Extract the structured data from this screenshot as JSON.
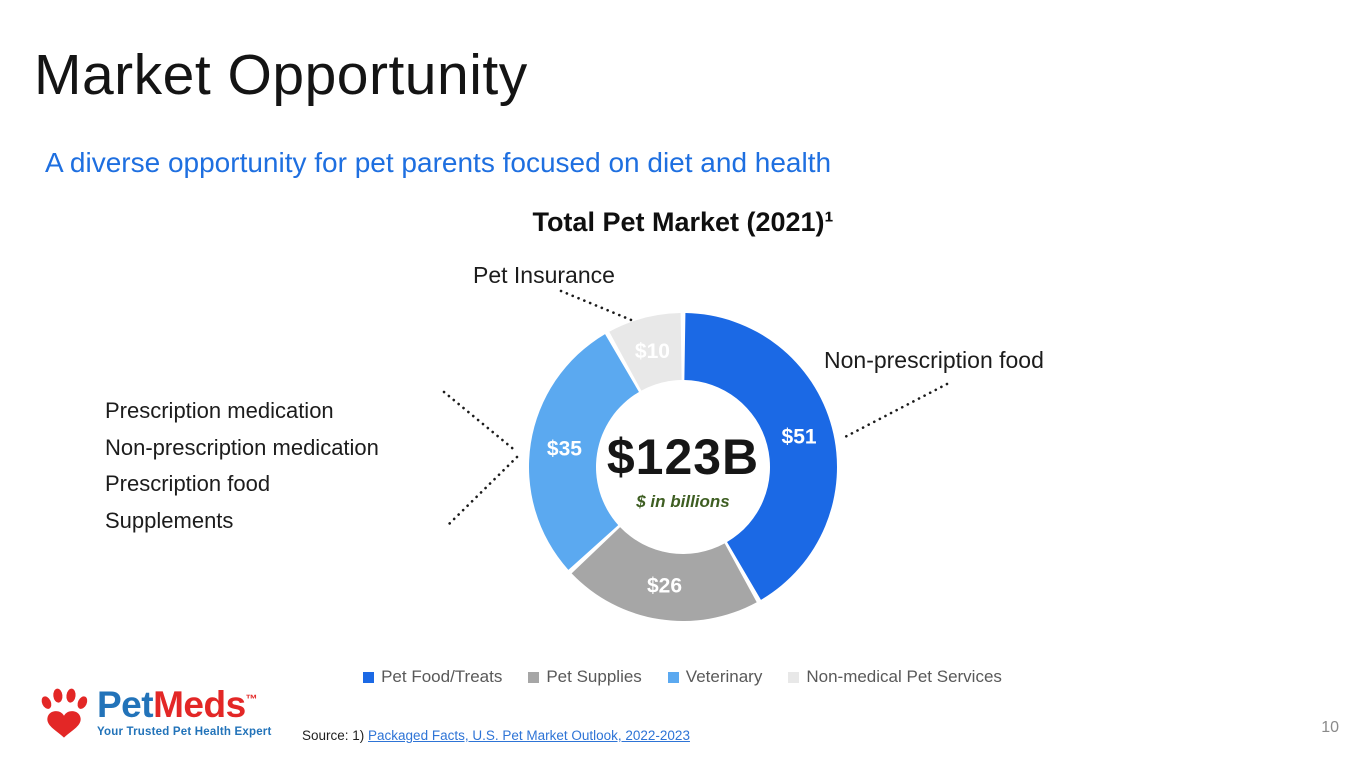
{
  "slide": {
    "title": "Market Opportunity",
    "subtitle": "A diverse opportunity for pet parents focused on diet and health",
    "page_number": "10"
  },
  "chart_data": {
    "type": "pie",
    "donut": true,
    "title": "Total Pet Market (2021)¹",
    "categories": [
      "Pet Food/Treats",
      "Pet Supplies",
      "Veterinary",
      "Non-medical Pet Services"
    ],
    "values": [
      51,
      26,
      35,
      10
    ],
    "value_labels": [
      "$51",
      "$26",
      "$35",
      "$10"
    ],
    "colors": [
      "#1B69E5",
      "#A6A6A6",
      "#5BA9F0",
      "#E8E8E8"
    ],
    "total": 123,
    "center_label": "$123B",
    "center_sublabel": "$ in billions",
    "start_angle": "top",
    "direction": "clockwise",
    "legend_position": "bottom"
  },
  "annotations": {
    "pet_insurance": "Pet Insurance",
    "non_prescription_food": "Non-prescription food",
    "left_list": [
      "Prescription medication",
      "Non-prescription medication",
      "Prescription food",
      "Supplements"
    ]
  },
  "footer": {
    "source_prefix": "Source: 1) ",
    "source_link": "Packaged Facts, U.S. Pet Market Outlook, 2022-2023",
    "logo": {
      "brand_pet": "Pet",
      "brand_meds": "Meds",
      "trademark": "™",
      "tagline": "Your Trusted Pet Health Expert"
    }
  },
  "colors": {
    "accent_blue": "#1E6FE0",
    "note_green": "#3E5E22",
    "logo_blue": "#2273B9",
    "logo_red": "#E32726",
    "legend_text": "#595959"
  }
}
